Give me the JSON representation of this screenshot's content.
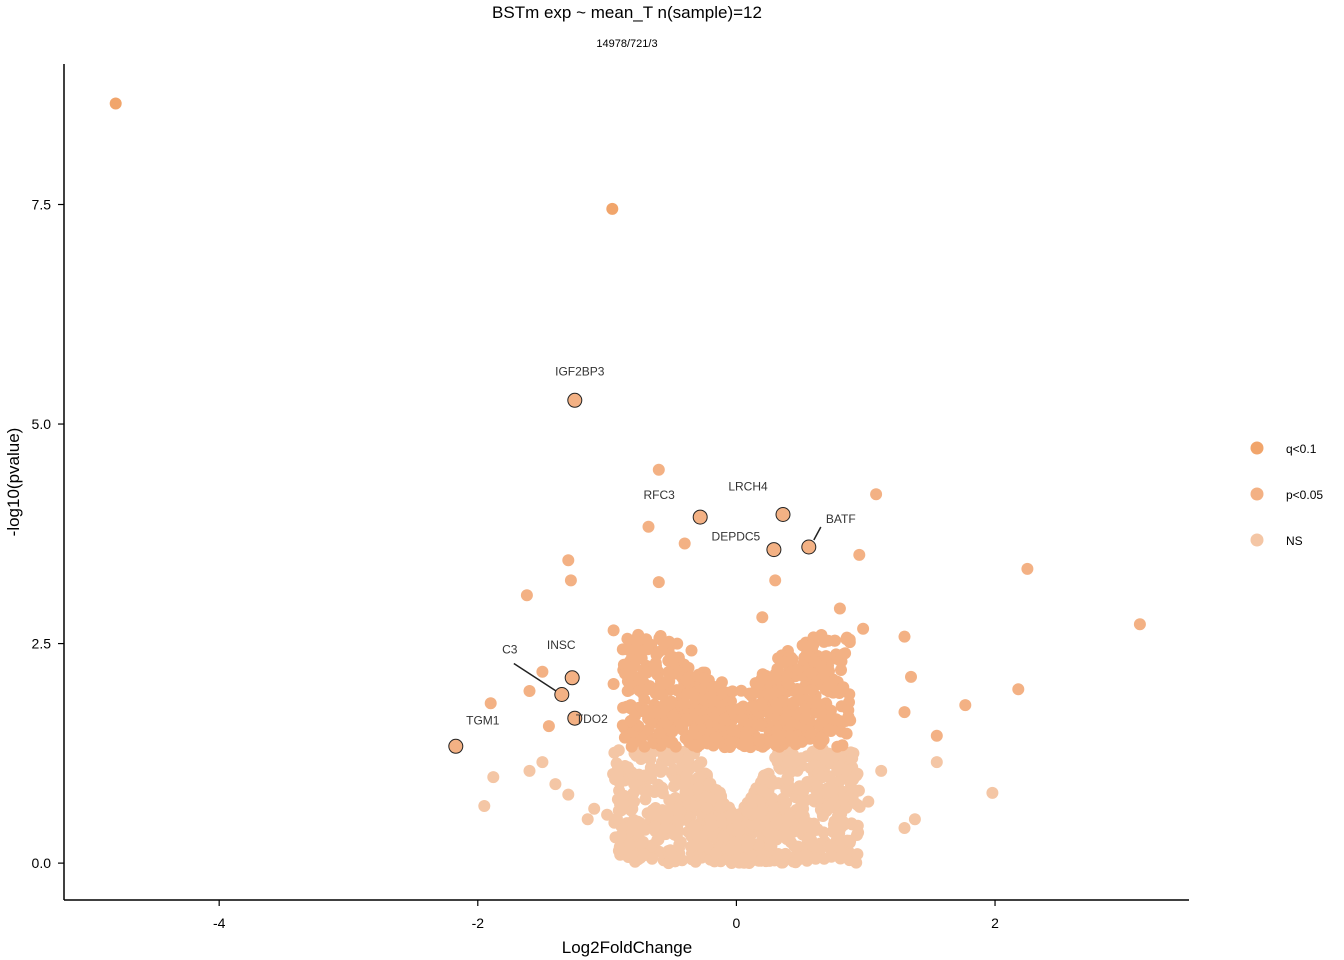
{
  "chart_data": {
    "type": "scatter",
    "title": "BSTm exp ~ mean_T n(sample)=12",
    "subtitle": "14978/721/3",
    "xlabel": "Log2FoldChange",
    "ylabel": "-log10(pvalue)",
    "xlim": [
      -5.2,
      3.5
    ],
    "ylim": [
      -0.42,
      9.1
    ],
    "x_ticks": [
      -4,
      -2,
      0,
      2
    ],
    "x_tick_labels": [
      "-4",
      "-2",
      "0",
      "2"
    ],
    "y_ticks": [
      0,
      2.5,
      5,
      7.5
    ],
    "y_tick_labels": [
      "0.0",
      "2.5",
      "5.0",
      "7.5"
    ],
    "grid": false,
    "legend_position": "right",
    "colors": {
      "q<0.1": "#F1A56B",
      "p<0.05": "#F3B184",
      "NS": "#F4C6A5"
    },
    "series": [
      {
        "name": "q<0.1",
        "x": [
          -4.8,
          -0.96
        ],
        "y": [
          8.65,
          7.45
        ]
      },
      {
        "name": "p<0.05",
        "x": [
          -0.6,
          1.08,
          2.25,
          3.12,
          -1.28,
          -1.62,
          -0.68,
          -0.4,
          0.3,
          -1.3,
          0.95,
          0.8,
          0.98,
          2.18,
          1.77,
          1.55,
          1.3,
          -1.9,
          -1.5,
          -1.6,
          -0.95,
          -0.75,
          -0.6,
          -0.95,
          0.2,
          0.6,
          -1.45,
          1.3,
          1.35
        ],
        "y": [
          4.48,
          4.2,
          3.35,
          2.72,
          3.22,
          3.05,
          3.83,
          3.64,
          3.22,
          3.45,
          3.51,
          2.9,
          2.67,
          1.98,
          1.8,
          1.45,
          2.58,
          1.82,
          2.18,
          1.96,
          2.04,
          2.09,
          3.2,
          2.65,
          2.8,
          2.3,
          1.56,
          1.72,
          2.12
        ]
      },
      {
        "name": "NS",
        "x": [
          -1.95,
          -1.88,
          -1.6,
          -1.5,
          -1.4,
          -1.3,
          -1.1,
          -1.0,
          1.98,
          1.55,
          1.38,
          1.3,
          1.12,
          -1.15,
          1.02,
          0.9,
          -0.9,
          -0.7,
          0.0,
          -0.2,
          0.2,
          -0.4,
          0.4,
          -0.55,
          0.6,
          -0.3,
          0.3,
          -0.1,
          0.1,
          -0.45,
          0.5,
          -0.65,
          0.7,
          0.8,
          -0.8,
          -0.25,
          0.25,
          0.05,
          -0.05
        ],
        "y": [
          0.65,
          0.98,
          1.05,
          1.15,
          0.9,
          0.78,
          0.62,
          0.55,
          0.8,
          1.15,
          0.5,
          0.4,
          1.05,
          0.5,
          0.7,
          0.95,
          0.7,
          0.8,
          0.1,
          0.5,
          0.6,
          0.9,
          0.95,
          0.4,
          0.45,
          1.1,
          1.2,
          0.3,
          0.25,
          0.6,
          0.7,
          0.55,
          0.8,
          0.4,
          0.45,
          0.2,
          0.35,
          0.05,
          0.15
        ]
      }
    ],
    "labeled_points": [
      {
        "label": "IGF2BP3",
        "x": -1.25,
        "y": 5.27
      },
      {
        "label": "RFC3",
        "x": -0.28,
        "y": 3.94
      },
      {
        "label": "LRCH4",
        "x": 0.36,
        "y": 3.97
      },
      {
        "label": "DEPDC5",
        "x": 0.29,
        "y": 3.57
      },
      {
        "label": "BATF",
        "x": 0.56,
        "y": 3.6
      },
      {
        "label": "INSC",
        "x": -1.27,
        "y": 2.11
      },
      {
        "label": "C3",
        "x": -1.35,
        "y": 1.92
      },
      {
        "label": "TDO2",
        "x": -1.25,
        "y": 1.65
      },
      {
        "label": "TGM1",
        "x": -2.17,
        "y": 1.33
      }
    ]
  },
  "legend": {
    "items": [
      {
        "label": "q<0.1",
        "color": "#F1A56B"
      },
      {
        "label": "p<0.05",
        "color": "#F3B184"
      },
      {
        "label": "NS",
        "color": "#F4C6A5"
      }
    ]
  }
}
